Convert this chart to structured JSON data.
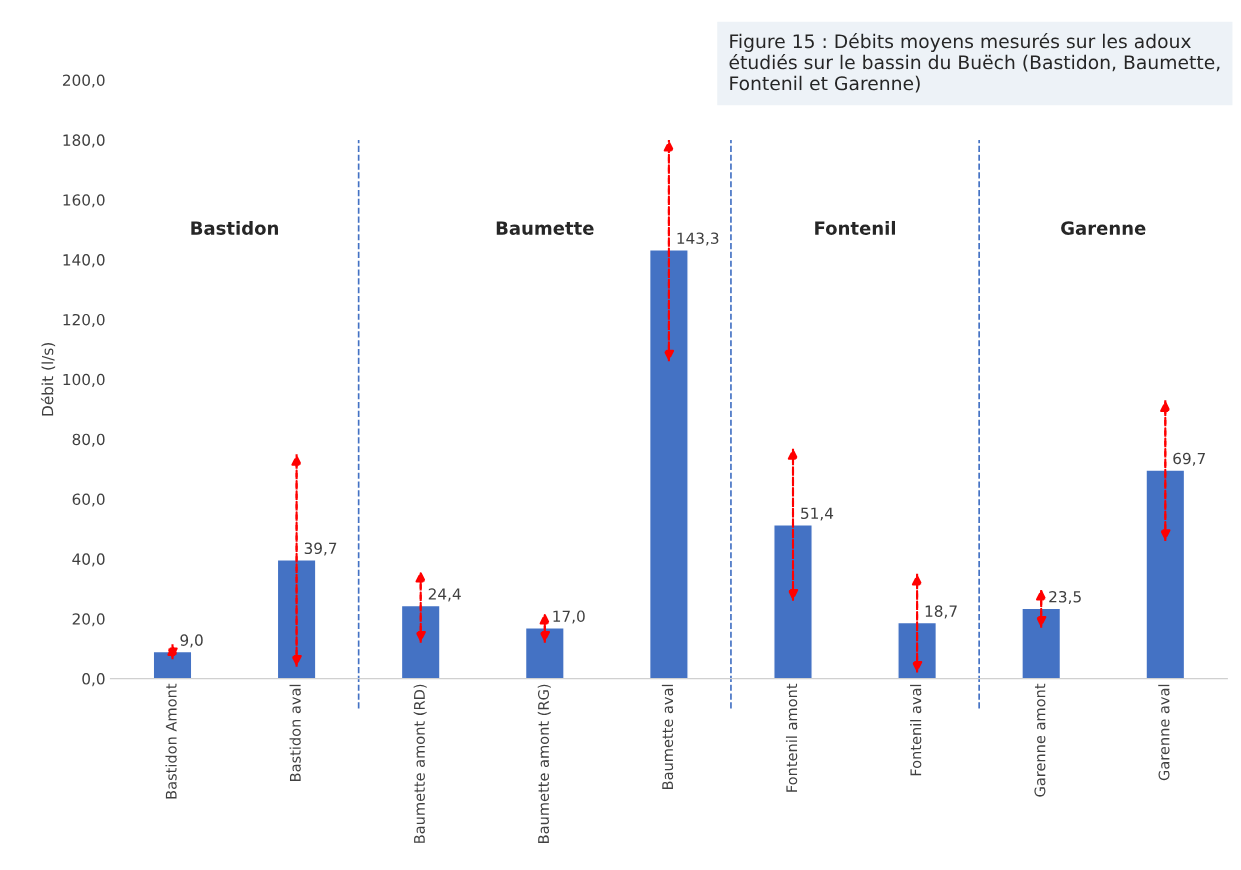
{
  "chart_data": {
    "type": "bar",
    "title": "Figure 15 : Débits moyens mesurés sur les adoux étudiés sur le bassin du Buëch (Bastidon, Baumette, Fontenil et Garenne)",
    "ylabel": "Débit (l/s)",
    "categories": [
      "Bastidon Amont",
      "Bastidon aval",
      "Baumette amont (RD)",
      "Baumette amont (RG)",
      "Baumette aval",
      "Fontenil amont",
      "Fontenil aval",
      "Garenne amont",
      "Garenne aval"
    ],
    "values": [
      9.0,
      39.7,
      24.4,
      17.0,
      143.3,
      51.4,
      18.7,
      23.5,
      69.7
    ],
    "value_labels": [
      "9,0",
      "39,7",
      "24,4",
      "17,0",
      "143,3",
      "51,4",
      "18,7",
      "23,5",
      "69,7"
    ],
    "errors": [
      [
        6.5,
        11.5
      ],
      [
        4,
        75
      ],
      [
        12,
        36
      ],
      [
        12,
        22
      ],
      [
        106,
        180
      ],
      [
        26,
        77
      ],
      [
        2,
        35
      ],
      [
        17,
        30
      ],
      [
        46,
        93
      ]
    ],
    "color": "#4472c4",
    "ylim": [
      0,
      200
    ],
    "yticks": [
      {
        "value": 0,
        "label": "0,0"
      },
      {
        "value": 20,
        "label": "20,0"
      },
      {
        "value": 40,
        "label": "40,0"
      },
      {
        "value": 60,
        "label": "60,0"
      },
      {
        "value": 80,
        "label": "80,0"
      },
      {
        "value": 100,
        "label": "100,0"
      },
      {
        "value": 120,
        "label": "120,0"
      },
      {
        "value": 140,
        "label": "140,0"
      },
      {
        "value": 160,
        "label": "160,0"
      },
      {
        "value": 180,
        "label": "180,0"
      },
      {
        "value": 200,
        "label": "200,0"
      }
    ],
    "annotations": [
      "Bastidon",
      "Baumette",
      "Fontenil",
      "Garenne"
    ],
    "grid": false
  }
}
